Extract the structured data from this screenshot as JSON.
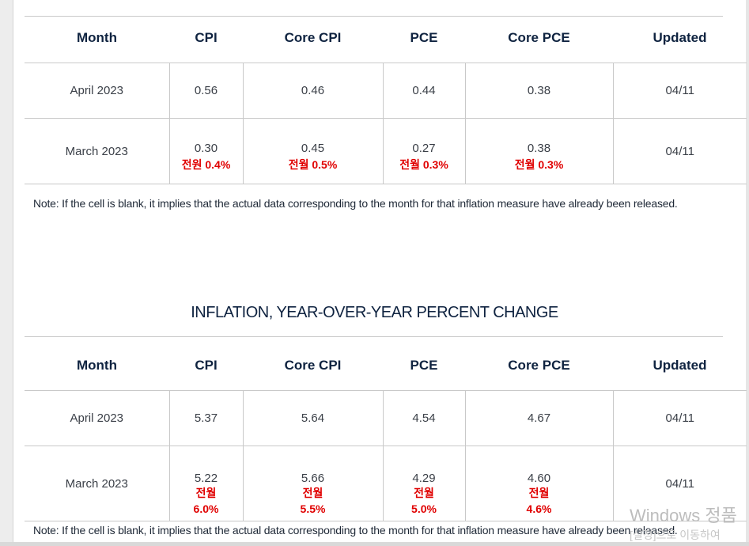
{
  "columns": [
    "Month",
    "CPI",
    "Core CPI",
    "PCE",
    "Core PCE",
    "Updated"
  ],
  "mom_table": {
    "rows": [
      {
        "month": "April 2023",
        "cpi": "0.56",
        "core_cpi": "0.46",
        "pce": "0.44",
        "core_pce": "0.38",
        "updated": "04/11"
      },
      {
        "month": "March 2023",
        "cpi": "0.30",
        "core_cpi": "0.45",
        "pce": "0.27",
        "core_pce": "0.38",
        "updated": "04/11",
        "annotations": {
          "cpi": "전원 0.4%",
          "core_cpi": "전월 0.5%",
          "pce": "전월 0.3%",
          "core_pce": "전월 0.3%"
        }
      }
    ],
    "note": "Note: If the cell is blank, it implies that the actual data corresponding to the month for that inflation measure have already been released."
  },
  "yoy_section": {
    "title": "INFLATION, YEAR-OVER-YEAR PERCENT CHANGE",
    "rows": [
      {
        "month": "April 2023",
        "cpi": "5.37",
        "core_cpi": "5.64",
        "pce": "4.54",
        "core_pce": "4.67",
        "updated": "04/11"
      },
      {
        "month": "March 2023",
        "cpi": "5.22",
        "core_cpi": "5.66",
        "pce": "4.29",
        "core_pce": "4.60",
        "updated": "04/11",
        "annotations": {
          "cpi": {
            "label": "전월",
            "value": "6.0%"
          },
          "core_cpi": {
            "label": "전월",
            "value": "5.5%"
          },
          "pce": {
            "label": "전월",
            "value": "5.0%"
          },
          "core_pce": {
            "label": "전월",
            "value": "4.6%"
          }
        }
      }
    ],
    "note": "Note: If the cell is blank, it implies that the actual data corresponding to the month for that inflation measure have already been released."
  },
  "watermark": {
    "line1": "Windows 정품",
    "line2": "[설정]으로 이동하여"
  },
  "colors": {
    "header_text": "#0f2340",
    "annotation": "#e00000",
    "border": "#c9c9c9"
  }
}
